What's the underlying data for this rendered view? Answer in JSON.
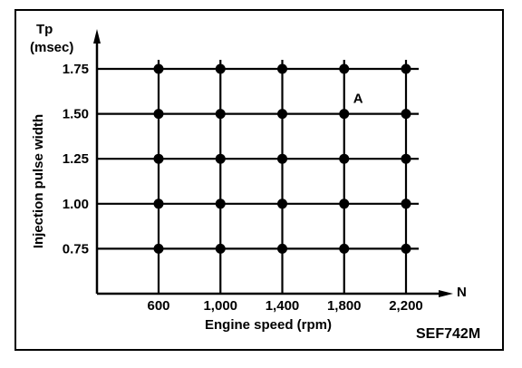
{
  "chart_data": {
    "type": "scatter",
    "y_axis_symbol": "Tp",
    "y_axis_unit": "(msec)",
    "ylabel": "Injection pulse width",
    "x_axis_symbol": "N",
    "xlabel": "Engine speed (rpm)",
    "x_ticks": [
      "600",
      "1,000",
      "1,400",
      "1,800",
      "2,200"
    ],
    "y_ticks": [
      "1.75",
      "1.50",
      "1.25",
      "1.00",
      "0.75"
    ],
    "x_values": [
      600,
      1000,
      1400,
      1800,
      2200
    ],
    "y_values": [
      1.75,
      1.5,
      1.25,
      1.0,
      0.75
    ],
    "grid": true,
    "annotations": [
      {
        "text": "A",
        "x": 1800,
        "y": 1.5
      }
    ],
    "figure_code": "SEF742M",
    "colors": {
      "ink": "#000000",
      "background": "#ffffff"
    }
  }
}
